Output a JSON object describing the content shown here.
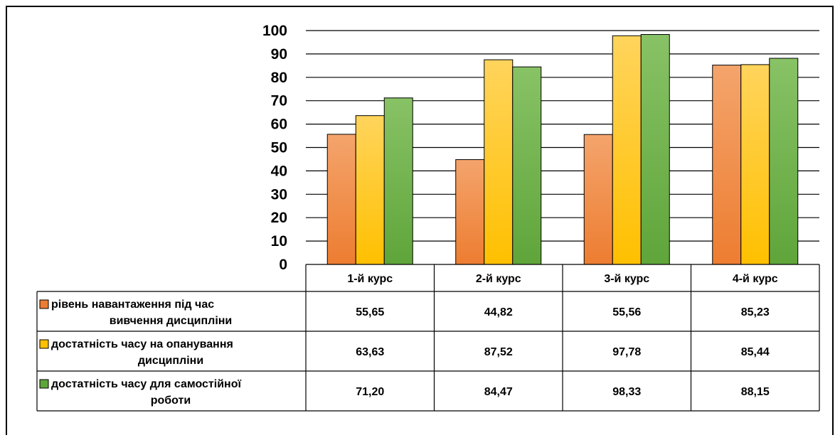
{
  "chart_data": {
    "type": "bar",
    "title": "",
    "xlabel": "",
    "ylabel": "",
    "ylim": [
      0,
      100
    ],
    "yticks": [
      0,
      10,
      20,
      30,
      40,
      50,
      60,
      70,
      80,
      90,
      100
    ],
    "grid": true,
    "legend": "data-table",
    "categories": [
      "1-й курс",
      "2-й курс",
      "3-й курс",
      "4-й курс"
    ],
    "series": [
      {
        "name": "рівень навантаження під час вивчення дисципліни",
        "name_lines": [
          "рівень навантаження під час",
          "вивчення дисципліни"
        ],
        "color": "#ED7D31",
        "color_light": "#F4A46C",
        "values": [
          55.65,
          44.82,
          55.56,
          85.23
        ],
        "labels": [
          "55,65",
          "44,82",
          "55,56",
          "85,23"
        ]
      },
      {
        "name": "достатність часу на опанування дисципліни",
        "name_lines": [
          "достатність часу на опанування",
          "дисципліни"
        ],
        "color": "#FFC000",
        "color_light": "#FFD45C",
        "values": [
          63.63,
          87.52,
          97.78,
          85.44
        ],
        "labels": [
          "63,63",
          "87,52",
          "97,78",
          "85,44"
        ]
      },
      {
        "name": "достатність часу для самостійної роботи",
        "name_lines": [
          "достатність часу для самостійної",
          "роботи"
        ],
        "color": "#5FA53A",
        "color_light": "#88C266",
        "values": [
          71.2,
          84.47,
          98.33,
          88.15
        ],
        "labels": [
          "71,20",
          "84,47",
          "98,33",
          "88,15"
        ]
      }
    ]
  }
}
